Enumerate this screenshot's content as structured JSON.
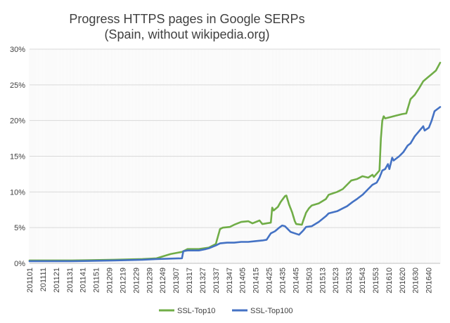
{
  "chart_data": {
    "type": "line",
    "title": "Progress HTTPS pages in Google SERPs",
    "subtitle": "(Spain, without wikipedia.org)",
    "xlabel": "",
    "ylabel": "",
    "ylim": [
      0,
      30
    ],
    "y_ticks": [
      "0%",
      "5%",
      "10%",
      "15%",
      "20%",
      "25%",
      "30%"
    ],
    "grid": true,
    "legend_position": "bottom",
    "x_tick_labels": [
      "201101",
      "201111",
      "201121",
      "201131",
      "201141",
      "201151",
      "201209",
      "201219",
      "201229",
      "201239",
      "201249",
      "201307",
      "201317",
      "201327",
      "201337",
      "201347",
      "201405",
      "201415",
      "201425",
      "201435",
      "201445",
      "201503",
      "201513",
      "201523",
      "201533",
      "201543",
      "201553",
      "201610",
      "201620",
      "201630",
      "201640"
    ],
    "x_points": 292,
    "series": [
      {
        "name": "SSL-Top10",
        "color": "#70AD47",
        "points": [
          [
            0,
            0.4
          ],
          [
            30,
            0.4
          ],
          [
            60,
            0.5
          ],
          [
            80,
            0.6
          ],
          [
            90,
            0.7
          ],
          [
            100,
            1.3
          ],
          [
            108,
            1.6
          ],
          [
            112,
            2.0
          ],
          [
            120,
            2.0
          ],
          [
            127,
            2.2
          ],
          [
            132,
            2.7
          ],
          [
            135,
            4.8
          ],
          [
            137,
            5.0
          ],
          [
            142,
            5.1
          ],
          [
            145,
            5.4
          ],
          [
            150,
            5.8
          ],
          [
            155,
            5.9
          ],
          [
            158,
            5.6
          ],
          [
            163,
            6.0
          ],
          [
            165,
            5.5
          ],
          [
            168,
            5.6
          ],
          [
            171,
            5.7
          ],
          [
            172,
            7.8
          ],
          [
            173,
            7.4
          ],
          [
            176,
            7.9
          ],
          [
            178,
            8.6
          ],
          [
            181,
            9.4
          ],
          [
            182,
            9.5
          ],
          [
            184,
            8.2
          ],
          [
            186,
            7.2
          ],
          [
            188,
            5.9
          ],
          [
            189,
            5.5
          ],
          [
            193,
            5.4
          ],
          [
            194,
            6.0
          ],
          [
            196,
            7.1
          ],
          [
            198,
            7.7
          ],
          [
            200,
            8.1
          ],
          [
            205,
            8.4
          ],
          [
            210,
            9.0
          ],
          [
            212,
            9.6
          ],
          [
            218,
            10.0
          ],
          [
            222,
            10.4
          ],
          [
            226,
            11.2
          ],
          [
            228,
            11.6
          ],
          [
            232,
            11.8
          ],
          [
            236,
            12.2
          ],
          [
            240,
            12.0
          ],
          [
            243,
            12.4
          ],
          [
            244,
            12.1
          ],
          [
            248,
            13.0
          ],
          [
            249,
            17.5
          ],
          [
            250,
            20.0
          ],
          [
            251,
            20.6
          ],
          [
            252,
            20.3
          ],
          [
            256,
            20.5
          ],
          [
            260,
            20.7
          ],
          [
            264,
            20.9
          ],
          [
            267,
            21.0
          ],
          [
            270,
            23.0
          ],
          [
            273,
            23.6
          ],
          [
            276,
            24.5
          ],
          [
            279,
            25.5
          ],
          [
            282,
            26.0
          ],
          [
            285,
            26.5
          ],
          [
            288,
            27.0
          ],
          [
            291,
            28.1
          ]
        ]
      },
      {
        "name": "SSL-Top100",
        "color": "#4472C4",
        "points": [
          [
            0,
            0.3
          ],
          [
            30,
            0.3
          ],
          [
            60,
            0.4
          ],
          [
            80,
            0.5
          ],
          [
            90,
            0.6
          ],
          [
            108,
            0.7
          ],
          [
            109,
            1.7
          ],
          [
            112,
            1.8
          ],
          [
            118,
            1.8
          ],
          [
            120,
            1.8
          ],
          [
            125,
            2.0
          ],
          [
            127,
            2.1
          ],
          [
            132,
            2.5
          ],
          [
            135,
            2.8
          ],
          [
            140,
            2.9
          ],
          [
            145,
            2.9
          ],
          [
            150,
            3.0
          ],
          [
            155,
            3.0
          ],
          [
            160,
            3.1
          ],
          [
            165,
            3.2
          ],
          [
            168,
            3.3
          ],
          [
            171,
            4.2
          ],
          [
            174,
            4.5
          ],
          [
            177,
            5.0
          ],
          [
            179,
            5.3
          ],
          [
            181,
            5.2
          ],
          [
            183,
            4.8
          ],
          [
            185,
            4.4
          ],
          [
            188,
            4.2
          ],
          [
            191,
            4.0
          ],
          [
            194,
            4.6
          ],
          [
            196,
            5.1
          ],
          [
            200,
            5.2
          ],
          [
            205,
            5.8
          ],
          [
            210,
            6.6
          ],
          [
            212,
            7.0
          ],
          [
            218,
            7.3
          ],
          [
            222,
            7.7
          ],
          [
            225,
            8.0
          ],
          [
            229,
            8.6
          ],
          [
            232,
            9.0
          ],
          [
            236,
            9.6
          ],
          [
            240,
            10.4
          ],
          [
            243,
            11.0
          ],
          [
            246,
            11.3
          ],
          [
            248,
            12.0
          ],
          [
            250,
            13.0
          ],
          [
            252,
            13.2
          ],
          [
            254,
            13.9
          ],
          [
            255,
            13.2
          ],
          [
            257,
            14.8
          ],
          [
            258,
            14.4
          ],
          [
            262,
            15.0
          ],
          [
            265,
            15.6
          ],
          [
            268,
            16.5
          ],
          [
            270,
            16.8
          ],
          [
            273,
            17.8
          ],
          [
            276,
            18.5
          ],
          [
            279,
            19.2
          ],
          [
            280,
            18.6
          ],
          [
            283,
            19.0
          ],
          [
            285,
            20.0
          ],
          [
            287,
            21.3
          ],
          [
            289,
            21.6
          ],
          [
            291,
            21.9
          ]
        ]
      }
    ]
  }
}
